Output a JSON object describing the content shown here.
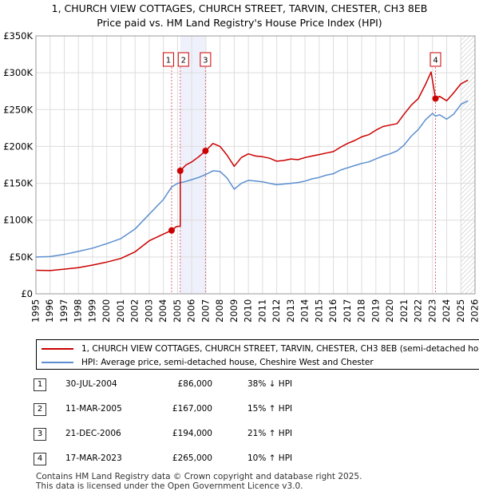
{
  "chart_data": {
    "type": "line",
    "title": "1, CHURCH VIEW COTTAGES, CHURCH STREET, TARVIN, CHESTER, CH3 8EB",
    "subtitle": "Price paid vs. HM Land Registry's House Price Index (HPI)",
    "xlim": [
      1995,
      2026
    ],
    "ylim": [
      0,
      350000
    ],
    "y_ticks": [
      0,
      50000,
      100000,
      150000,
      200000,
      250000,
      300000,
      350000
    ],
    "y_tick_labels": [
      "£0",
      "£50K",
      "£100K",
      "£150K",
      "£200K",
      "£250K",
      "£300K",
      "£350K"
    ],
    "x_ticks": [
      1995,
      1996,
      1997,
      1998,
      1999,
      2000,
      2001,
      2002,
      2003,
      2004,
      2005,
      2006,
      2007,
      2008,
      2009,
      2010,
      2011,
      2012,
      2013,
      2014,
      2015,
      2016,
      2017,
      2018,
      2019,
      2020,
      2021,
      2022,
      2023,
      2024,
      2025,
      2026
    ],
    "grid": true,
    "shaded_range": [
      2005.19,
      2006.97
    ],
    "hatched_from": 2025.0,
    "series": [
      {
        "name": "1, CHURCH VIEW COTTAGES, CHURCH STREET, TARVIN, CHESTER, CH3 8EB (semi-detached house)",
        "color": "#cc0000",
        "points": [
          [
            1995,
            32000
          ],
          [
            1996,
            31500
          ],
          [
            1997,
            33500
          ],
          [
            1998,
            35500
          ],
          [
            1999,
            39000
          ],
          [
            2000,
            43000
          ],
          [
            2001,
            48000
          ],
          [
            2002,
            57000
          ],
          [
            2003,
            72000
          ],
          [
            2004,
            81000
          ],
          [
            2004.58,
            86000
          ],
          [
            2004.9,
            91000
          ],
          [
            2005.19,
            92000
          ],
          [
            2005.19,
            167000
          ],
          [
            2005.6,
            175000
          ],
          [
            2006.0,
            179000
          ],
          [
            2006.5,
            186000
          ],
          [
            2006.97,
            194000
          ],
          [
            2007.5,
            204000
          ],
          [
            2008.0,
            200000
          ],
          [
            2008.5,
            188000
          ],
          [
            2009.0,
            173000
          ],
          [
            2009.5,
            185000
          ],
          [
            2010,
            190000
          ],
          [
            2010.5,
            187000
          ],
          [
            2011,
            186000
          ],
          [
            2011.5,
            184000
          ],
          [
            2012,
            180000
          ],
          [
            2012.5,
            181000
          ],
          [
            2013,
            183000
          ],
          [
            2013.5,
            182000
          ],
          [
            2014,
            185000
          ],
          [
            2014.5,
            187000
          ],
          [
            2015,
            189000
          ],
          [
            2015.5,
            191000
          ],
          [
            2016,
            193000
          ],
          [
            2016.5,
            199000
          ],
          [
            2017,
            204000
          ],
          [
            2017.5,
            208000
          ],
          [
            2018,
            213000
          ],
          [
            2018.5,
            216000
          ],
          [
            2019,
            222000
          ],
          [
            2019.5,
            227000
          ],
          [
            2020,
            229000
          ],
          [
            2020.5,
            231000
          ],
          [
            2021,
            244000
          ],
          [
            2021.5,
            256000
          ],
          [
            2022,
            265000
          ],
          [
            2022.5,
            284000
          ],
          [
            2022.9,
            301000
          ],
          [
            2023.21,
            265000
          ],
          [
            2023.5,
            268000
          ],
          [
            2024,
            262000
          ],
          [
            2024.5,
            273000
          ],
          [
            2025,
            285000
          ],
          [
            2025.5,
            290000
          ]
        ]
      },
      {
        "name": "HPI: Average price, semi-detached house, Cheshire West and Chester",
        "color": "#5b8fcf",
        "points": [
          [
            1995,
            50000
          ],
          [
            1996,
            50500
          ],
          [
            1997,
            53500
          ],
          [
            1998,
            57500
          ],
          [
            1999,
            62000
          ],
          [
            2000,
            68000
          ],
          [
            2001,
            75000
          ],
          [
            2002,
            88000
          ],
          [
            2003,
            108000
          ],
          [
            2004,
            128000
          ],
          [
            2004.58,
            145000
          ],
          [
            2005,
            150000
          ],
          [
            2005.5,
            152000
          ],
          [
            2006,
            155000
          ],
          [
            2006.5,
            158000
          ],
          [
            2007,
            162000
          ],
          [
            2007.5,
            167000
          ],
          [
            2008,
            166000
          ],
          [
            2008.5,
            157000
          ],
          [
            2009,
            142000
          ],
          [
            2009.5,
            150000
          ],
          [
            2010,
            154000
          ],
          [
            2010.5,
            153000
          ],
          [
            2011,
            152000
          ],
          [
            2011.5,
            150000
          ],
          [
            2012,
            148000
          ],
          [
            2012.5,
            149000
          ],
          [
            2013,
            150000
          ],
          [
            2013.5,
            151000
          ],
          [
            2014,
            153000
          ],
          [
            2014.5,
            156000
          ],
          [
            2015,
            158000
          ],
          [
            2015.5,
            161000
          ],
          [
            2016,
            163000
          ],
          [
            2016.5,
            168000
          ],
          [
            2017,
            171000
          ],
          [
            2017.5,
            174000
          ],
          [
            2018,
            177000
          ],
          [
            2018.5,
            179000
          ],
          [
            2019,
            183000
          ],
          [
            2019.5,
            187000
          ],
          [
            2020,
            190000
          ],
          [
            2020.5,
            194000
          ],
          [
            2021,
            202000
          ],
          [
            2021.5,
            214000
          ],
          [
            2022,
            223000
          ],
          [
            2022.5,
            236000
          ],
          [
            2023.0,
            245000
          ],
          [
            2023.21,
            241000
          ],
          [
            2023.5,
            243000
          ],
          [
            2024,
            237000
          ],
          [
            2024.5,
            244000
          ],
          [
            2025,
            257000
          ],
          [
            2025.5,
            262000
          ]
        ]
      }
    ],
    "sale_markers": [
      {
        "label": "1",
        "x": 2004.58,
        "y": 86000
      },
      {
        "label": "2",
        "x": 2005.19,
        "y": 167000
      },
      {
        "label": "3",
        "x": 2006.97,
        "y": 194000
      },
      {
        "label": "4",
        "x": 2023.21,
        "y": 265000
      }
    ]
  },
  "header": {
    "title": "1, CHURCH VIEW COTTAGES, CHURCH STREET, TARVIN, CHESTER, CH3 8EB",
    "subtitle": "Price paid vs. HM Land Registry's House Price Index (HPI)"
  },
  "legend": {
    "property_label": "1, CHURCH VIEW COTTAGES, CHURCH STREET, TARVIN, CHESTER, CH3 8EB (semi-detached house)",
    "hpi_label": "HPI: Average price, semi-detached house, Cheshire West and Chester",
    "property_color": "#cc0000",
    "hpi_color": "#5b8fcf"
  },
  "sales": [
    {
      "num": "1",
      "date": "30-JUL-2004",
      "price": "£86,000",
      "hpi": "38% ↓ HPI"
    },
    {
      "num": "2",
      "date": "11-MAR-2005",
      "price": "£167,000",
      "hpi": "15% ↑ HPI"
    },
    {
      "num": "3",
      "date": "21-DEC-2006",
      "price": "£194,000",
      "hpi": "21% ↑ HPI"
    },
    {
      "num": "4",
      "date": "17-MAR-2023",
      "price": "£265,000",
      "hpi": "10% ↑ HPI"
    }
  ],
  "footer": {
    "line1": "Contains HM Land Registry data © Crown copyright and database right 2025.",
    "line2": "This data is licensed under the Open Government Licence v3.0."
  }
}
